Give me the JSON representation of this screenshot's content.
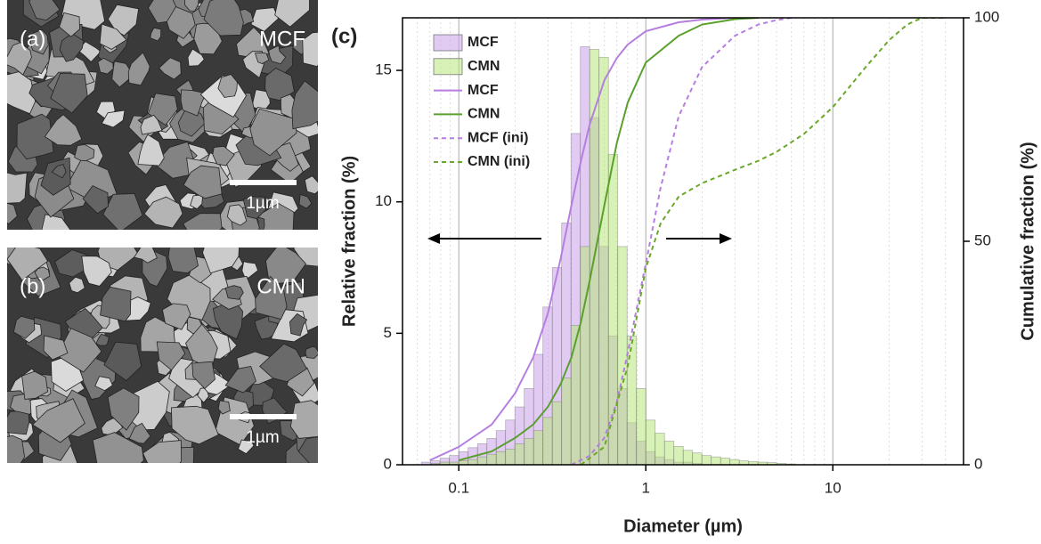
{
  "panels": [
    {
      "label": "(a)",
      "name": "MCF",
      "scale": "1µm"
    },
    {
      "label": "(b)",
      "name": "CMN",
      "scale": "1µm"
    }
  ],
  "chart_data": {
    "type": "histogram",
    "panel_label": "(c)",
    "x_label": "Diameter (µm)",
    "y_label": "Relative fraction (%)",
    "y2_label": "Cumulative fraction (%)",
    "log_x": true,
    "grid": true,
    "legend": "upper left",
    "xlim": [
      0.05,
      50
    ],
    "xticks": [
      0.1,
      1,
      10
    ],
    "ylim": [
      0,
      17
    ],
    "yticks": [
      0,
      5,
      10,
      15
    ],
    "y2lim": [
      0,
      100
    ],
    "y2ticks": [
      0,
      50,
      100
    ],
    "bins": [
      0.0631,
      0.0708,
      0.0794,
      0.0891,
      0.1,
      0.1122,
      0.1259,
      0.1413,
      0.1585,
      0.1778,
      0.1995,
      0.2239,
      0.2512,
      0.2818,
      0.3162,
      0.3548,
      0.3981,
      0.4467,
      0.5012,
      0.5623,
      0.631,
      0.7079,
      0.7943,
      0.8913,
      1,
      1.122,
      1.259,
      1.413,
      1.585,
      1.778,
      1.995,
      2.239,
      2.512,
      2.818,
      3.162,
      3.548,
      3.981,
      4.467,
      5.012,
      5.623,
      6.31
    ],
    "series": [
      {
        "name": "MCF",
        "color": "#c9a0ea",
        "values": [
          0.1,
          0.15,
          0.25,
          0.35,
          0.5,
          0.65,
          0.8,
          1.0,
          1.3,
          1.7,
          2.2,
          2.9,
          4.2,
          6.0,
          7.5,
          9.2,
          12.6,
          15.9,
          13.2,
          8.3,
          4.9,
          2.9,
          1.6,
          0.9,
          0.5,
          0.3,
          0.2,
          0.1,
          0.1,
          0.05,
          0,
          0,
          0,
          0,
          0,
          0,
          0,
          0,
          0,
          0
        ]
      },
      {
        "name": "CMN",
        "color": "#b8e67a",
        "values": [
          0,
          0.05,
          0.1,
          0.1,
          0.15,
          0.2,
          0.3,
          0.4,
          0.5,
          0.6,
          0.8,
          1.0,
          1.3,
          1.8,
          2.4,
          3.3,
          5.3,
          8.3,
          15.8,
          15.5,
          11.8,
          8.3,
          4.9,
          2.9,
          1.7,
          1.2,
          0.9,
          0.7,
          0.55,
          0.45,
          0.35,
          0.3,
          0.25,
          0.2,
          0.15,
          0.12,
          0.1,
          0.08,
          0.05,
          0.03
        ]
      }
    ],
    "cumulative": [
      {
        "name": "MCF",
        "color": "#b57ee0",
        "dashed": false,
        "axis": "y2",
        "x": [
          0.07,
          0.1,
          0.15,
          0.2,
          0.25,
          0.3,
          0.35,
          0.4,
          0.45,
          0.5,
          0.6,
          0.7,
          0.8,
          1,
          1.5,
          2,
          3,
          4
        ],
        "values": [
          1,
          4,
          9,
          16,
          24,
          34,
          46,
          58,
          68,
          76,
          86,
          91,
          94,
          97,
          99,
          99.6,
          100,
          100
        ]
      },
      {
        "name": "CMN",
        "color": "#5aa02c",
        "dashed": false,
        "axis": "y2",
        "x": [
          0.1,
          0.15,
          0.2,
          0.25,
          0.3,
          0.35,
          0.4,
          0.45,
          0.5,
          0.6,
          0.7,
          0.8,
          1,
          1.5,
          2,
          3,
          4
        ],
        "values": [
          1,
          3,
          6,
          9,
          13,
          18,
          24,
          32,
          41,
          58,
          72,
          81,
          90,
          96,
          98.5,
          99.7,
          100
        ]
      },
      {
        "name": "MCF (ini)",
        "color": "#b57ee0",
        "dashed": true,
        "axis": "y2",
        "x": [
          0.4,
          0.5,
          0.6,
          0.7,
          0.8,
          1,
          1.2,
          1.5,
          2,
          3,
          4,
          5,
          6
        ],
        "values": [
          0,
          2,
          6,
          14,
          25,
          45,
          62,
          78,
          89,
          96,
          98.5,
          99.5,
          100
        ]
      },
      {
        "name": "CMN (ini)",
        "color": "#6aa82c",
        "dashed": true,
        "axis": "y2",
        "x": [
          0.45,
          0.6,
          0.8,
          1,
          1.2,
          1.5,
          2,
          3,
          4,
          5,
          7,
          10,
          15,
          20,
          25,
          30,
          40
        ],
        "values": [
          0,
          4,
          22,
          44,
          54,
          60,
          63,
          66,
          68,
          70,
          74,
          80,
          89,
          95,
          98.5,
          100,
          100
        ]
      }
    ]
  }
}
